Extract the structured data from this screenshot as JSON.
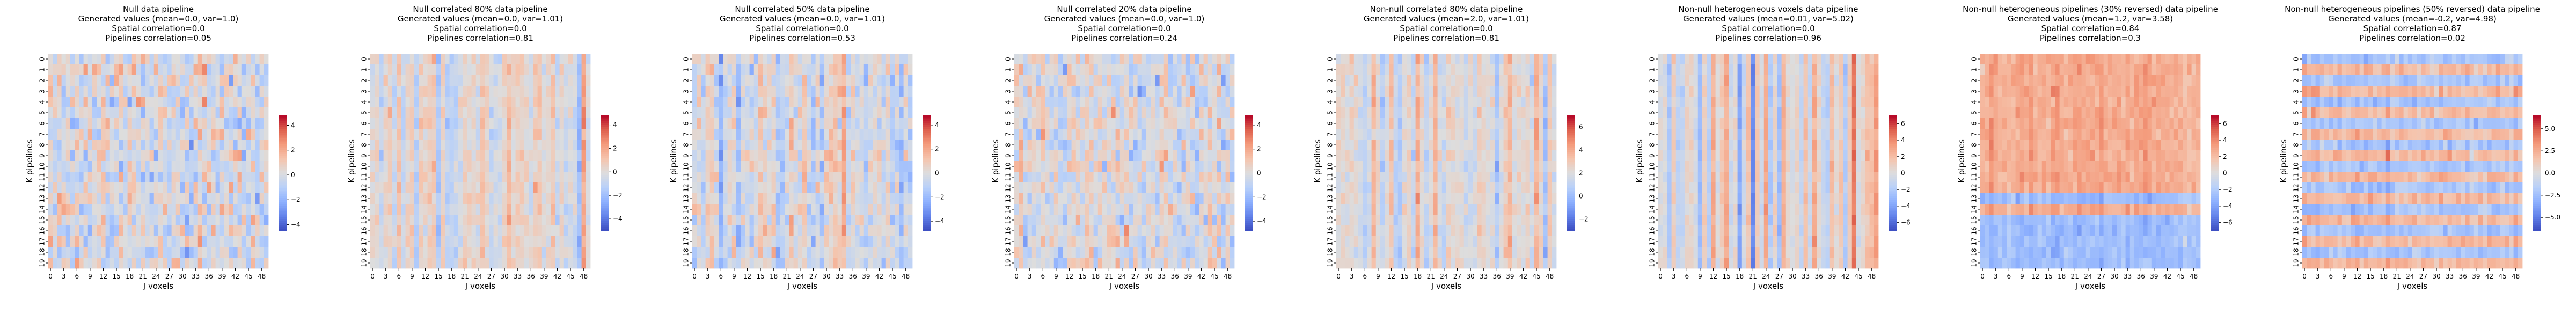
{
  "chart_data": [
    {
      "type": "heatmap",
      "title": "Null data pipeline\nGenerated values (mean=0.0, var=1.0)\nSpatial correlation=0.0\nPipelines correlation=0.05",
      "xlabel": "J voxels",
      "ylabel": "K pipelines",
      "x_ticks": [
        "0",
        "3",
        "6",
        "9",
        "12",
        "15",
        "18",
        "21",
        "24",
        "27",
        "30",
        "33",
        "36",
        "39",
        "42",
        "45",
        "48"
      ],
      "y_ticks": [
        "0",
        "1",
        "2",
        "3",
        "4",
        "5",
        "6",
        "7",
        "8",
        "9",
        "10",
        "11",
        "12",
        "13",
        "14",
        "15",
        "16",
        "17",
        "18",
        "19"
      ],
      "colorbar_ticks": [
        -4,
        -2,
        0,
        2,
        4
      ],
      "colorbar_range": [
        -4.5,
        4.8
      ],
      "mean": 0.0,
      "var": 1.0,
      "spatial_correlation": 0.0,
      "pipelines_correlation": 0.05
    },
    {
      "type": "heatmap",
      "title": "Null correlated 80% data pipeline\nGenerated values (mean=0.0, var=1.01)\nSpatial correlation=0.0\nPipelines correlation=0.81",
      "xlabel": "J voxels",
      "ylabel": "K pipelines",
      "x_ticks": [
        "0",
        "3",
        "6",
        "9",
        "12",
        "15",
        "18",
        "21",
        "24",
        "27",
        "30",
        "33",
        "36",
        "39",
        "42",
        "45",
        "48"
      ],
      "y_ticks": [
        "0",
        "1",
        "2",
        "3",
        "4",
        "5",
        "6",
        "7",
        "8",
        "9",
        "10",
        "11",
        "12",
        "13",
        "14",
        "15",
        "16",
        "17",
        "18",
        "19"
      ],
      "colorbar_ticks": [
        -4,
        -2,
        0,
        2,
        4
      ],
      "colorbar_range": [
        -5.0,
        4.8
      ],
      "mean": 0.0,
      "var": 1.01,
      "spatial_correlation": 0.0,
      "pipelines_correlation": 0.81
    },
    {
      "type": "heatmap",
      "title": "Null correlated 50% data pipeline\nGenerated values (mean=0.0, var=1.01)\nSpatial correlation=0.0\nPipelines correlation=0.53",
      "xlabel": "J voxels",
      "ylabel": "K pipelines",
      "x_ticks": [
        "0",
        "3",
        "6",
        "9",
        "12",
        "15",
        "18",
        "21",
        "24",
        "27",
        "30",
        "33",
        "36",
        "39",
        "42",
        "45",
        "48"
      ],
      "y_ticks": [
        "0",
        "1",
        "2",
        "3",
        "4",
        "5",
        "6",
        "7",
        "8",
        "9",
        "10",
        "11",
        "12",
        "13",
        "14",
        "15",
        "16",
        "17",
        "18",
        "19"
      ],
      "colorbar_ticks": [
        -4,
        -2,
        0,
        2,
        4
      ],
      "colorbar_range": [
        -4.8,
        4.8
      ],
      "mean": 0.0,
      "var": 1.01,
      "spatial_correlation": 0.0,
      "pipelines_correlation": 0.53
    },
    {
      "type": "heatmap",
      "title": "Null correlated 20% data pipeline\nGenerated values (mean=0.0, var=1.0)\nSpatial correlation=0.0\nPipelines correlation=0.24",
      "xlabel": "J voxels",
      "ylabel": "K pipelines",
      "x_ticks": [
        "0",
        "3",
        "6",
        "9",
        "12",
        "15",
        "18",
        "21",
        "24",
        "27",
        "30",
        "33",
        "36",
        "39",
        "42",
        "45",
        "48"
      ],
      "y_ticks": [
        "0",
        "1",
        "2",
        "3",
        "4",
        "5",
        "6",
        "7",
        "8",
        "9",
        "10",
        "11",
        "12",
        "13",
        "14",
        "15",
        "16",
        "17",
        "18",
        "19"
      ],
      "colorbar_ticks": [
        -4,
        -2,
        0,
        2,
        4
      ],
      "colorbar_range": [
        -4.8,
        4.8
      ],
      "mean": 0.0,
      "var": 1.0,
      "spatial_correlation": 0.0,
      "pipelines_correlation": 0.24
    },
    {
      "type": "heatmap",
      "title": "Non-null correlated 80% data pipeline\nGenerated values (mean=2.0, var=1.01)\nSpatial correlation=0.0\nPipelines correlation=0.81",
      "xlabel": "J voxels",
      "ylabel": "K pipelines",
      "x_ticks": [
        "0",
        "3",
        "6",
        "9",
        "12",
        "15",
        "18",
        "21",
        "24",
        "27",
        "30",
        "33",
        "36",
        "39",
        "42",
        "45",
        "48"
      ],
      "y_ticks": [
        "0",
        "1",
        "2",
        "3",
        "4",
        "5",
        "6",
        "7",
        "8",
        "9",
        "10",
        "11",
        "12",
        "13",
        "14",
        "15",
        "16",
        "17",
        "18",
        "19"
      ],
      "colorbar_ticks": [
        -2,
        0,
        2,
        4,
        6
      ],
      "colorbar_range": [
        -3.0,
        7.0
      ],
      "mean": 2.0,
      "var": 1.01,
      "spatial_correlation": 0.0,
      "pipelines_correlation": 0.81
    },
    {
      "type": "heatmap",
      "title": "Non-null heterogeneous voxels data pipeline\nGenerated values (mean=0.01, var=5.02)\nSpatial correlation=0.0\nPipelines correlation=0.96",
      "xlabel": "J voxels",
      "ylabel": "K pipelines",
      "x_ticks": [
        "0",
        "3",
        "6",
        "9",
        "12",
        "15",
        "18",
        "21",
        "24",
        "27",
        "30",
        "33",
        "36",
        "39",
        "42",
        "45",
        "48"
      ],
      "y_ticks": [
        "0",
        "1",
        "2",
        "3",
        "4",
        "5",
        "6",
        "7",
        "8",
        "9",
        "10",
        "11",
        "12",
        "13",
        "14",
        "15",
        "16",
        "17",
        "18",
        "19"
      ],
      "colorbar_ticks": [
        -6,
        -4,
        -2,
        0,
        2,
        4,
        6
      ],
      "colorbar_range": [
        -7.0,
        7.0
      ],
      "mean": 0.01,
      "var": 5.02,
      "spatial_correlation": 0.0,
      "pipelines_correlation": 0.96
    },
    {
      "type": "heatmap",
      "title": "Non-null heterogeneous pipelines (30% reversed) data pipeline\nGenerated values (mean=1.2, var=3.58)\nSpatial correlation=0.84\nPipelines correlation=0.3",
      "xlabel": "J voxels",
      "ylabel": "K pipelines",
      "x_ticks": [
        "0",
        "3",
        "6",
        "9",
        "12",
        "15",
        "18",
        "21",
        "24",
        "27",
        "30",
        "33",
        "36",
        "39",
        "42",
        "45",
        "48"
      ],
      "y_ticks": [
        "0",
        "1",
        "2",
        "3",
        "4",
        "5",
        "6",
        "7",
        "8",
        "9",
        "10",
        "11",
        "12",
        "13",
        "14",
        "15",
        "16",
        "17",
        "18",
        "19"
      ],
      "colorbar_ticks": [
        -6,
        -4,
        -2,
        0,
        2,
        4,
        6
      ],
      "colorbar_range": [
        -7.0,
        7.0
      ],
      "mean": 1.2,
      "var": 3.58,
      "spatial_correlation": 0.84,
      "pipelines_correlation": 0.3
    },
    {
      "type": "heatmap",
      "title": "Non-null heterogeneous pipelines (50% reversed) data pipeline\nGenerated values (mean=-0.2, var=4.98)\nSpatial correlation=0.87\nPipelines correlation=0.02",
      "xlabel": "J voxels",
      "ylabel": "K pipelines",
      "x_ticks": [
        "0",
        "3",
        "6",
        "9",
        "12",
        "15",
        "18",
        "21",
        "24",
        "27",
        "30",
        "33",
        "36",
        "39",
        "42",
        "45",
        "48"
      ],
      "y_ticks": [
        "0",
        "1",
        "2",
        "3",
        "4",
        "5",
        "6",
        "7",
        "8",
        "9",
        "10",
        "11",
        "12",
        "13",
        "14",
        "15",
        "16",
        "17",
        "18",
        "19"
      ],
      "colorbar_ticks": [
        -5.0,
        -2.5,
        0.0,
        2.5,
        5.0
      ],
      "colorbar_range": [
        -6.5,
        6.5
      ],
      "mean": -0.2,
      "var": 4.98,
      "spatial_correlation": 0.87,
      "pipelines_correlation": 0.02
    }
  ]
}
